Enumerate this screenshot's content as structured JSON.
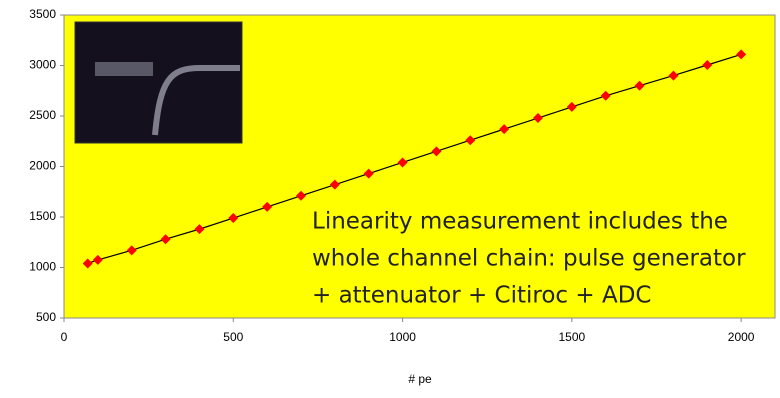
{
  "chart_data": {
    "type": "scatter",
    "x_label": "# pe",
    "annotation": [
      "Linearity measurement includes the",
      "whole channel chain: pulse generator",
      "+ attenuator + Citiroc + ADC"
    ],
    "background": "#ffff00",
    "line_color": "#000000",
    "series": [
      {
        "color": "#ff0000",
        "x": [
          70,
          100,
          200,
          300,
          400,
          500,
          600,
          700,
          800,
          900,
          1000,
          1100,
          1200,
          1300,
          1400,
          1500,
          1600,
          1700,
          1800,
          1900,
          2000
        ],
        "values": [
          1040,
          1075,
          1170,
          1280,
          1380,
          1490,
          1600,
          1710,
          1820,
          1930,
          2040,
          2150,
          2260,
          2370,
          2480,
          2590,
          2700,
          2800,
          2900,
          3005,
          3110
        ]
      }
    ],
    "xlim": [
      0,
      2100
    ],
    "xticks": [
      0,
      500,
      1000,
      1500,
      2000
    ],
    "ylim": [
      500,
      3500
    ],
    "yticks": [
      500,
      1000,
      1500,
      2000,
      2500,
      3000,
      3500
    ]
  }
}
